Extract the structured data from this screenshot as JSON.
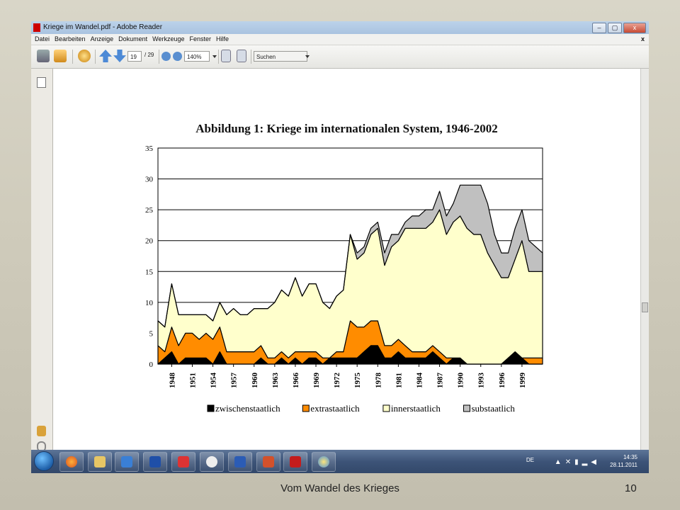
{
  "window": {
    "title": "Kriege im Wandel.pdf - Adobe Reader",
    "buttons": [
      "–",
      "▢",
      "x"
    ]
  },
  "menubar": {
    "items": [
      "Datei",
      "Bearbeiten",
      "Anzeige",
      "Dokument",
      "Werkzeuge",
      "Fenster",
      "Hilfe"
    ],
    "close": "x"
  },
  "toolbar": {
    "page_current": "19",
    "page_total": "/ 29",
    "zoom": "140%",
    "search_placeholder": "Suchen"
  },
  "taskbar": {
    "lang": "DE",
    "time": "14:35",
    "date": "28.11.2011"
  },
  "slide": {
    "footer": "Vom Wandel des Krieges",
    "page_number": "10"
  },
  "chart_data": {
    "type": "area",
    "title": "Abbildung 1: Kriege im internationalen System, 1946-2002",
    "xlabel": "",
    "ylabel": "",
    "ylim": [
      0,
      35
    ],
    "yticks": [
      0,
      5,
      10,
      15,
      20,
      25,
      30,
      35
    ],
    "xticks": [
      "1948",
      "1951",
      "1954",
      "1957",
      "1960",
      "1963",
      "1966",
      "1969",
      "1972",
      "1975",
      "1978",
      "1981",
      "1984",
      "1987",
      "1990",
      "1993",
      "1996",
      "1999"
    ],
    "x": [
      1946,
      1947,
      1948,
      1949,
      1950,
      1951,
      1952,
      1953,
      1954,
      1955,
      1956,
      1957,
      1958,
      1959,
      1960,
      1961,
      1962,
      1963,
      1964,
      1965,
      1966,
      1967,
      1968,
      1969,
      1970,
      1971,
      1972,
      1973,
      1974,
      1975,
      1976,
      1977,
      1978,
      1979,
      1980,
      1981,
      1982,
      1983,
      1984,
      1985,
      1986,
      1987,
      1988,
      1989,
      1990,
      1991,
      1992,
      1993,
      1994,
      1995,
      1996,
      1997,
      1998,
      1999,
      2000,
      2001,
      2002
    ],
    "stacked": true,
    "grid": true,
    "legend_position": "bottom",
    "colors": {
      "zwischenstaatlich": "#000000",
      "extrastaatlich": "#ff8c00",
      "innerstaatlich": "#ffffcc",
      "substaatlich": "#c0c0c0"
    },
    "series": [
      {
        "name": "zwischenstaatlich",
        "values": [
          0,
          1,
          2,
          0,
          1,
          1,
          1,
          1,
          0,
          2,
          0,
          0,
          0,
          0,
          0,
          1,
          0,
          0,
          1,
          0,
          1,
          0,
          1,
          1,
          0,
          1,
          1,
          1,
          1,
          1,
          2,
          3,
          3,
          1,
          1,
          2,
          1,
          1,
          1,
          1,
          2,
          1,
          0,
          1,
          1,
          0,
          0,
          0,
          0,
          0,
          0,
          1,
          2,
          1,
          0,
          0,
          0
        ]
      },
      {
        "name": "extrastaatlich",
        "values": [
          3,
          1,
          4,
          3,
          4,
          4,
          3,
          4,
          4,
          4,
          2,
          2,
          2,
          2,
          2,
          2,
          1,
          1,
          1,
          1,
          1,
          2,
          1,
          1,
          1,
          0,
          1,
          1,
          6,
          5,
          4,
          4,
          4,
          2,
          2,
          2,
          2,
          1,
          1,
          1,
          1,
          1,
          1,
          0,
          0,
          0,
          0,
          0,
          0,
          0,
          0,
          0,
          0,
          0,
          1,
          1,
          1
        ]
      },
      {
        "name": "innerstaatlich",
        "values": [
          4,
          4,
          7,
          5,
          3,
          3,
          4,
          3,
          3,
          4,
          6,
          7,
          6,
          6,
          7,
          6,
          8,
          9,
          10,
          10,
          12,
          9,
          11,
          11,
          9,
          8,
          9,
          10,
          14,
          11,
          12,
          14,
          15,
          13,
          16,
          16,
          19,
          20,
          20,
          20,
          20,
          23,
          20,
          22,
          23,
          22,
          21,
          21,
          18,
          16,
          14,
          13,
          15,
          19,
          14,
          14,
          14
        ]
      },
      {
        "name": "substaatlich",
        "values": [
          0,
          0,
          0,
          0,
          0,
          0,
          0,
          0,
          0,
          0,
          0,
          0,
          0,
          0,
          0,
          0,
          0,
          0,
          0,
          0,
          0,
          0,
          0,
          0,
          0,
          0,
          0,
          0,
          0,
          1,
          1,
          1,
          1,
          2,
          2,
          1,
          1,
          2,
          2,
          3,
          2,
          3,
          3,
          3,
          5,
          7,
          8,
          8,
          8,
          5,
          4,
          4,
          5,
          5,
          5,
          4,
          3
        ]
      }
    ]
  }
}
